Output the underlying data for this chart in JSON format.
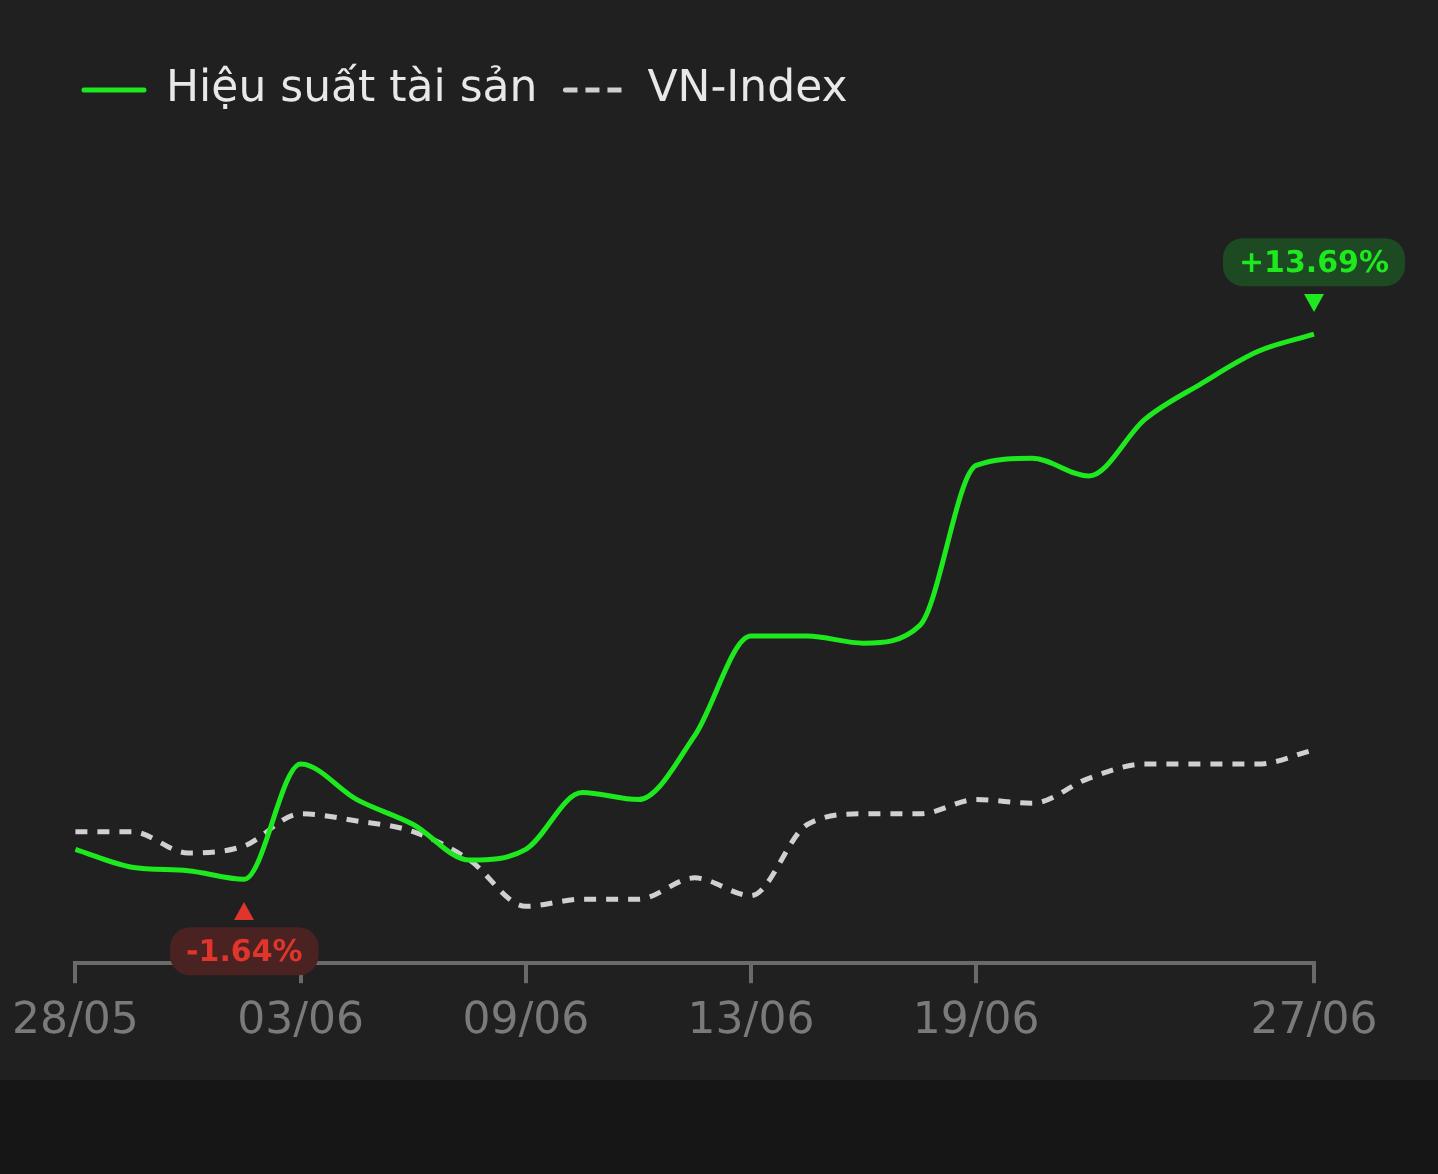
{
  "chart_data": {
    "type": "line",
    "categories": [
      "28/05",
      null,
      null,
      null,
      "03/06",
      null,
      null,
      null,
      "09/06",
      null,
      null,
      null,
      "13/06",
      null,
      null,
      null,
      "19/06",
      null,
      null,
      null,
      null,
      null,
      "27/06"
    ],
    "series": [
      {
        "name": "Hiệu suất tài sản",
        "color": "#1ee81e",
        "line_style": "solid",
        "values": [
          -0.8,
          -1.3,
          -1.4,
          -1.64,
          1.6,
          0.6,
          -0.1,
          -1.1,
          -0.8,
          0.8,
          0.6,
          2.4,
          5.2,
          5.2,
          5.0,
          5.5,
          10.0,
          10.2,
          9.7,
          11.3,
          12.3,
          13.2,
          13.69
        ],
        "value_labels": [
          null,
          null,
          null,
          "-1.64%",
          null,
          null,
          null,
          null,
          null,
          null,
          null,
          null,
          null,
          null,
          null,
          null,
          null,
          null,
          null,
          null,
          null,
          null,
          "+13.69%"
        ]
      },
      {
        "name": "VN-Index",
        "color": "#d0d0d0",
        "line_style": "dashed",
        "values": [
          -0.3,
          -0.3,
          -0.9,
          -0.7,
          0.2,
          0.0,
          -0.3,
          -1.1,
          -2.4,
          -2.2,
          -2.2,
          -1.6,
          -2.1,
          -0.1,
          0.2,
          0.2,
          0.6,
          0.5,
          1.2,
          1.6,
          1.6,
          1.6,
          2.0
        ]
      }
    ],
    "legend": "top left",
    "grid": false,
    "marker": "none",
    "tick_labels": "x"
  }
}
